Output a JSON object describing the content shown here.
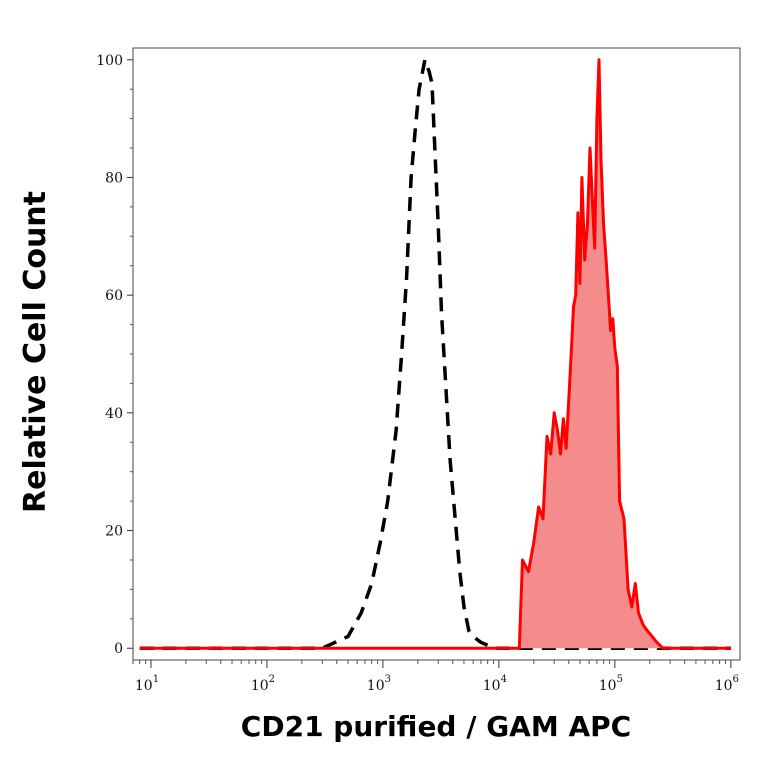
{
  "chart_data": {
    "type": "area",
    "xlabel": "CD21 purified / GAM APC",
    "ylabel": "Relative Cell Count",
    "xscale": "log",
    "xlim": [
      7,
      1200000
    ],
    "ylim": [
      -2,
      102
    ],
    "grid": false,
    "legend": "none",
    "x_ticks": [
      {
        "base": "10",
        "exp": "1",
        "value": 10
      },
      {
        "base": "10",
        "exp": "2",
        "value": 100
      },
      {
        "base": "10",
        "exp": "3",
        "value": 1000
      },
      {
        "base": "10",
        "exp": "4",
        "value": 10000
      },
      {
        "base": "10",
        "exp": "5",
        "value": 100000
      },
      {
        "base": "10",
        "exp": "6",
        "value": 1000000
      }
    ],
    "y_ticks": [
      "0",
      "20",
      "40",
      "60",
      "80",
      "100"
    ],
    "y_tick_values": [
      0,
      20,
      40,
      60,
      80,
      100
    ],
    "series": [
      {
        "style": "dashed-outline",
        "color": "#000000",
        "x": [
          8,
          300,
          500,
          650,
          800,
          950,
          1100,
          1300,
          1450,
          1600,
          1750,
          1900,
          2050,
          2200,
          2300,
          2400,
          2500,
          2650,
          2800,
          3000,
          3200,
          3500,
          3800,
          4200,
          4600,
          5000,
          5500,
          6000,
          7000,
          8000,
          9000,
          10000,
          12000,
          1000000
        ],
        "y": [
          0,
          0,
          2,
          6,
          11,
          18,
          25,
          37,
          50,
          63,
          80,
          88,
          95,
          98,
          100,
          99,
          98,
          96,
          85,
          72,
          57,
          44,
          32,
          22,
          13,
          7,
          3,
          2,
          1,
          0.5,
          0,
          0,
          0,
          0
        ]
      },
      {
        "style": "filled",
        "color": "#ff0000",
        "fill": "#f58c8c",
        "x": [
          8,
          15000,
          16000,
          18000,
          20000,
          22000,
          24000,
          26000,
          28000,
          30000,
          32000,
          34000,
          36000,
          38000,
          40000,
          42000,
          44000,
          46000,
          48000,
          50000,
          52000,
          55000,
          58000,
          61000,
          64000,
          67000,
          70000,
          73000,
          76000,
          80000,
          84000,
          88000,
          92000,
          96000,
          100000,
          105000,
          110000,
          120000,
          130000,
          140000,
          150000,
          160000,
          175000,
          190000,
          210000,
          230000,
          260000,
          1000000
        ],
        "y": [
          0,
          0,
          15,
          13,
          18,
          24,
          22,
          36,
          33,
          40,
          37,
          33,
          39,
          34,
          42,
          50,
          58,
          60,
          74,
          62,
          80,
          66,
          72,
          85,
          76,
          68,
          90,
          100,
          83,
          72,
          66,
          60,
          54,
          56,
          51,
          48,
          25,
          22,
          10,
          7,
          11,
          6,
          4,
          3,
          2,
          1,
          0,
          0
        ]
      }
    ]
  }
}
